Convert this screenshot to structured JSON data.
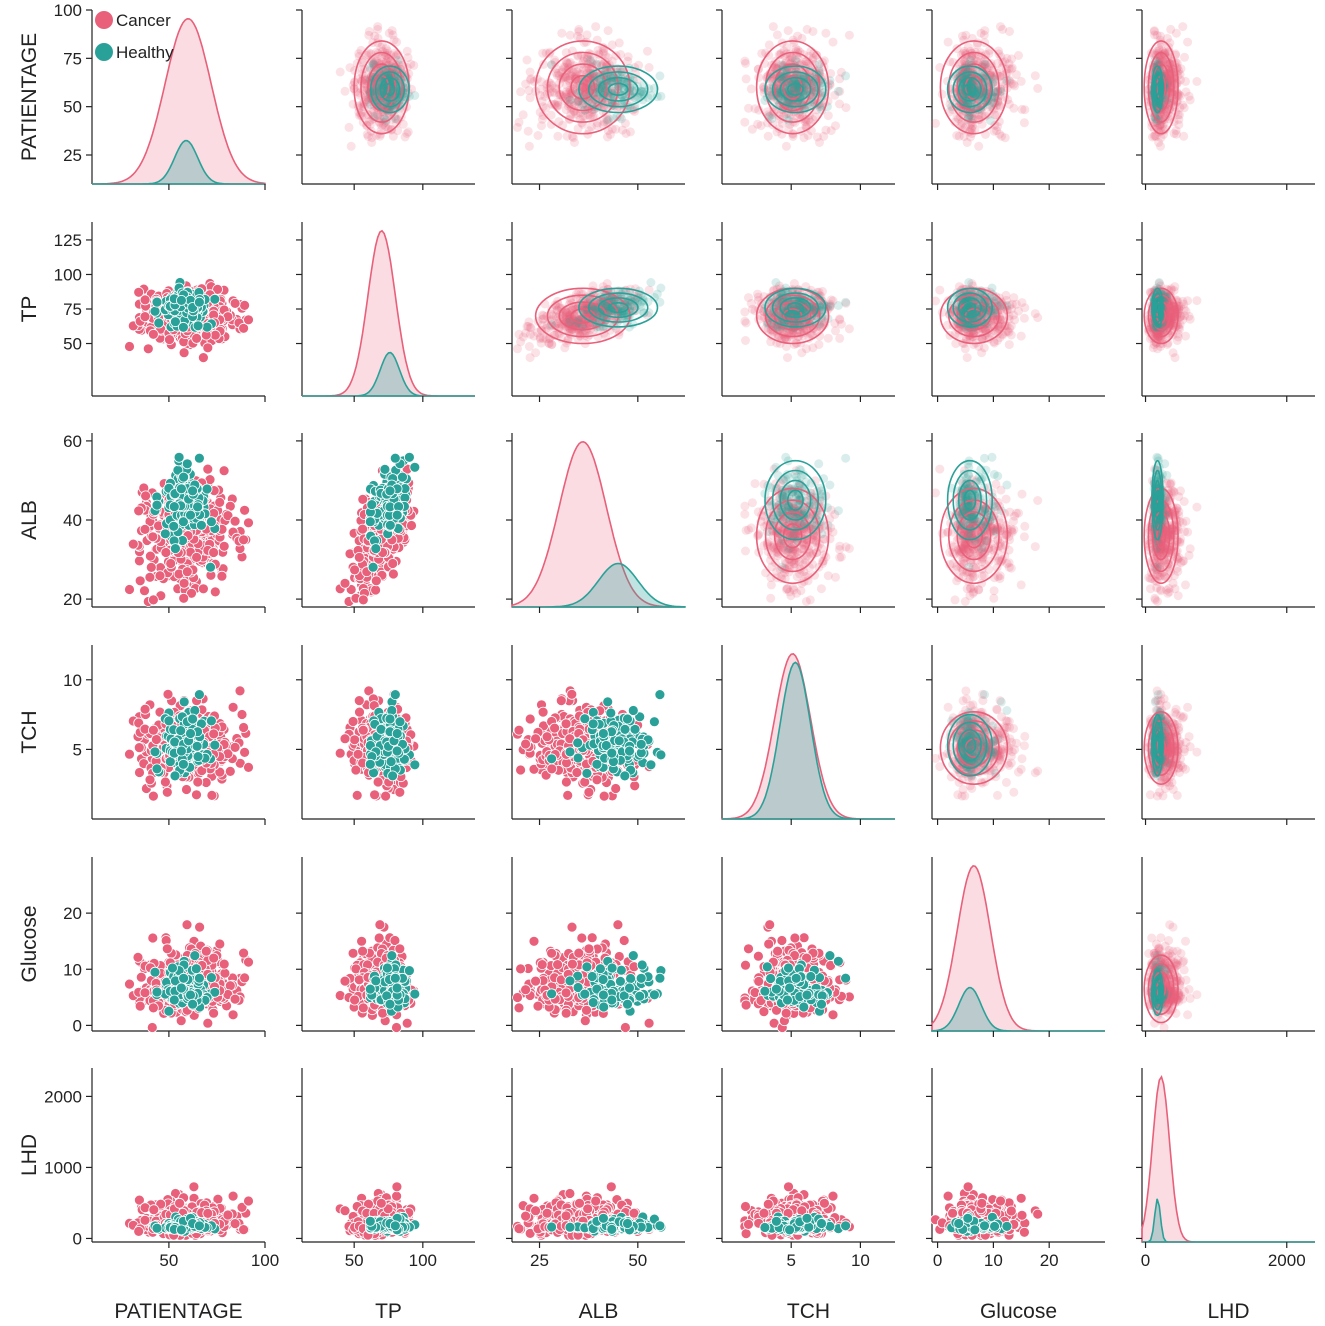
{
  "chart_data": {
    "type": "pairplot",
    "variables": [
      "PATIENTAGE",
      "TP",
      "ALB",
      "TCH",
      "Glucose",
      "LHD"
    ],
    "hue": {
      "series": [
        {
          "name": "Cancer",
          "color": "#e8607a"
        },
        {
          "name": "Healthy",
          "color": "#2aa198"
        }
      ]
    },
    "diag_kind": "kde",
    "upper_kind": "scatter + kde contours",
    "lower_kind": "scatter",
    "axes": {
      "PATIENTAGE": {
        "lim": [
          10,
          100
        ],
        "ticks": [
          50,
          100
        ],
        "yticks": [
          25,
          50,
          75,
          100
        ],
        "cancer": {
          "mean": 60,
          "sd": 12
        },
        "healthy": {
          "mean": 59,
          "sd": 6
        }
      },
      "TP": {
        "lim": [
          12,
          138
        ],
        "ticks": [
          50,
          100
        ],
        "yticks": [
          50,
          75,
          100,
          125
        ],
        "cancer": {
          "mean": 70,
          "sd": 10
        },
        "healthy": {
          "mean": 76,
          "sd": 7
        }
      },
      "ALB": {
        "lim": [
          18,
          62
        ],
        "ticks": [
          25,
          50
        ],
        "yticks": [
          20,
          40,
          60
        ],
        "cancer": {
          "mean": 36,
          "sd": 6
        },
        "healthy": {
          "mean": 45,
          "sd": 5
        }
      },
      "TCH": {
        "lim": [
          0,
          12.5
        ],
        "ticks": [
          5,
          10
        ],
        "yticks": [
          5,
          10
        ],
        "cancer": {
          "mean": 5.1,
          "sd": 1.3
        },
        "healthy": {
          "mean": 5.3,
          "sd": 1.1
        }
      },
      "Glucose": {
        "lim": [
          -1,
          30
        ],
        "ticks": [
          0,
          10,
          20
        ],
        "yticks": [
          0,
          10,
          20
        ],
        "cancer": {
          "mean": 6.5,
          "sd": 3
        },
        "healthy": {
          "mean": 5.8,
          "sd": 2
        }
      },
      "LHD": {
        "lim": [
          -50,
          2400
        ],
        "ticks": [
          0,
          2000
        ],
        "yticks": [
          0,
          1000,
          2000
        ],
        "cancer": {
          "mean": 220,
          "sd": 120
        },
        "healthy": {
          "mean": 170,
          "sd": 40
        }
      }
    },
    "n_points": {
      "cancer": 420,
      "healthy": 130
    },
    "legend": {
      "position": "top-left",
      "entries": [
        "Cancer",
        "Healthy"
      ]
    }
  }
}
